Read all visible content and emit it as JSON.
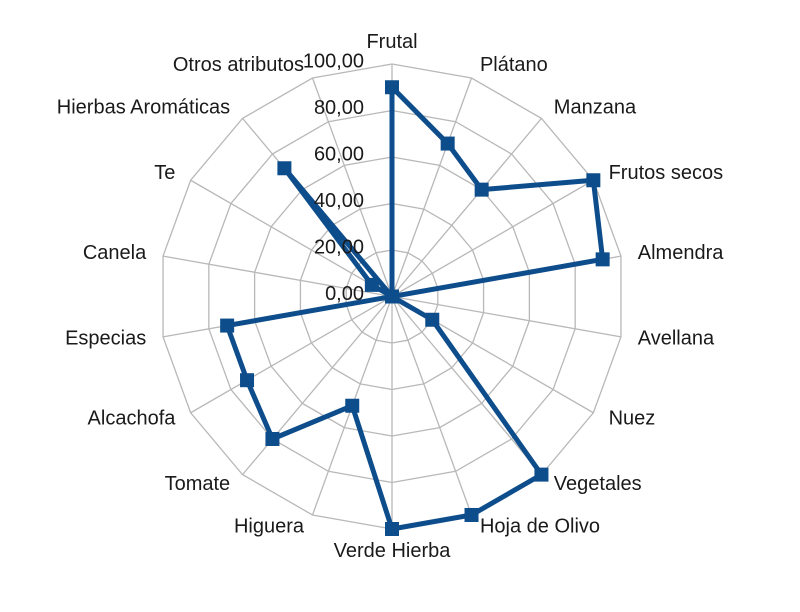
{
  "page": {
    "background": "#ffffff"
  },
  "chart_data": {
    "type": "radar",
    "title": "",
    "legend": false,
    "grid": true,
    "marker": "square",
    "fill": "none",
    "direction": "clockwise",
    "start_category_angle_deg": 0,
    "categories": [
      "Frutal",
      "Plátano",
      "Manzana",
      "Frutos secos",
      "Almendra",
      "Avellana",
      "Nuez",
      "Vegetales",
      "Hoja de Olivo",
      "Verde Hierba",
      "Higuera",
      "Tomate",
      "Alcachofa",
      "Especias",
      "Canela",
      "Te",
      "Hierbas Aromáticas",
      "Otros atributos"
    ],
    "values": [
      90,
      70,
      60,
      100,
      92,
      0,
      20,
      100,
      100,
      100,
      50,
      80,
      72,
      72,
      0,
      10,
      72,
      0
    ],
    "radial_axis": {
      "min": 0,
      "max": 100,
      "tick_interval": 20,
      "tick_labels": [
        "0,00",
        "20,00",
        "40,00",
        "60,00",
        "80,00",
        "100,00"
      ]
    },
    "colors": {
      "series": "#0e4d8b",
      "grid": "#b8b8b8",
      "text": "#1a1a1a",
      "background": "#ffffff"
    }
  }
}
